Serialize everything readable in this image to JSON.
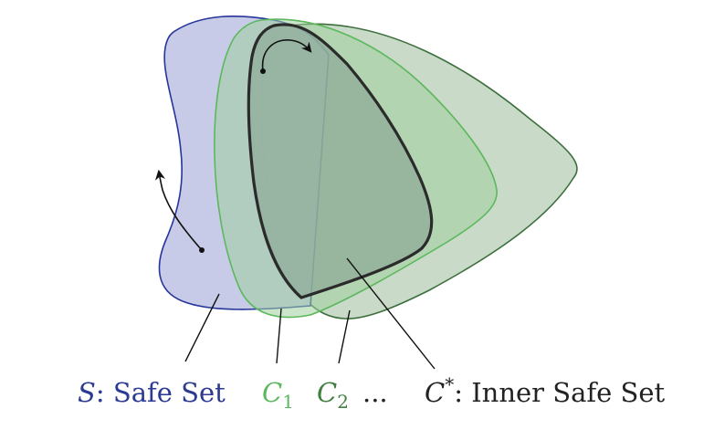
{
  "labels": {
    "safe_set": {
      "symbol": "S",
      "text": ": Safe Set",
      "color": "#2b3a93"
    },
    "c1": {
      "symbol": "C",
      "subscript": "1",
      "color": "#5cb85c"
    },
    "c2": {
      "symbol": "C",
      "subscript": "2",
      "color": "#3f7f3f"
    },
    "ellipsis": "...",
    "inner": {
      "symbol": "C",
      "superscript": "*",
      "text": ": Inner Safe Set",
      "color": "#222222"
    }
  },
  "colors": {
    "safe_fill": "#c5c8e6",
    "safe_stroke": "#26359a",
    "c1_fill": "#9fcf9f",
    "c1_stroke": "#5cb85c",
    "c2_fill": "#b7ceb6",
    "c2_stroke": "#3d6f3d",
    "inner_fill": "#8fac98",
    "inner_stroke": "#2b2b2b"
  }
}
